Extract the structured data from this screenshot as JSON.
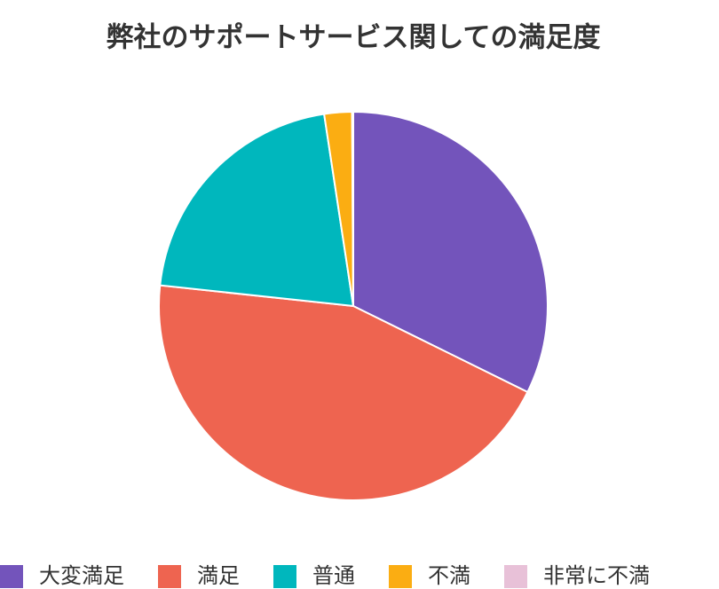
{
  "chart_data": {
    "type": "pie",
    "title": "弊社のサポートサービス関しての満足度",
    "categories": [
      "大変満足",
      "満足",
      "普通",
      "不満",
      "非常に不満"
    ],
    "values": [
      32.3,
      44.4,
      20.9,
      2.3,
      0.1
    ],
    "colors": [
      "#7354bb",
      "#ee6450",
      "#00b7bd",
      "#fbad12",
      "#e8c1d8"
    ],
    "legend": "bottom"
  }
}
